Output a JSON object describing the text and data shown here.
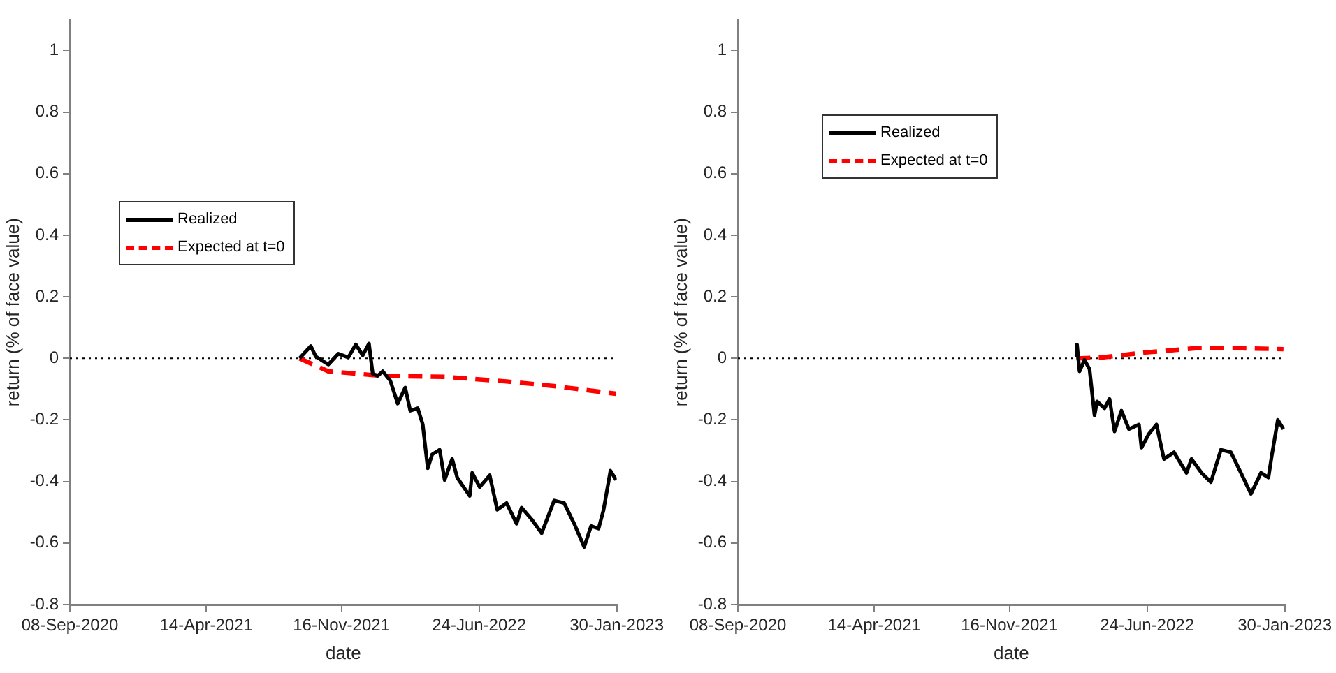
{
  "chart_data": [
    {
      "type": "line",
      "xlabel": "date",
      "ylabel": "return (% of face value)",
      "xlim": [
        "2020-09-08",
        "2023-01-30"
      ],
      "ylim": [
        -0.8,
        1.1
      ],
      "xticks": [
        {
          "value": "2020-09-08",
          "label": "08-Sep-2020"
        },
        {
          "value": "2021-04-14",
          "label": "14-Apr-2021"
        },
        {
          "value": "2021-11-16",
          "label": "16-Nov-2021"
        },
        {
          "value": "2022-06-24",
          "label": "24-Jun-2022"
        },
        {
          "value": "2023-01-30",
          "label": "30-Jan-2023"
        }
      ],
      "yticks": [
        -0.8,
        -0.6,
        -0.4,
        -0.2,
        0,
        0.2,
        0.4,
        0.6,
        0.8,
        1
      ],
      "grid": false,
      "legend": "left",
      "ref_lines": [
        {
          "axis": "y",
          "value": 0,
          "color": "#000000",
          "line_style": "dotted"
        }
      ],
      "series": [
        {
          "name": "Realized",
          "color": "#000000",
          "line_style": "solid",
          "x": [
            "2021-09-10",
            "2021-09-28",
            "2021-10-06",
            "2021-10-26",
            "2021-11-11",
            "2021-11-27",
            "2021-12-09",
            "2021-12-20",
            "2021-12-30",
            "2022-01-05",
            "2022-01-13",
            "2022-01-21",
            "2022-02-02",
            "2022-02-14",
            "2022-02-26",
            "2022-03-06",
            "2022-03-18",
            "2022-03-26",
            "2022-04-03",
            "2022-04-10",
            "2022-04-22",
            "2022-04-30",
            "2022-05-12",
            "2022-05-20",
            "2022-06-09",
            "2022-06-13",
            "2022-06-25",
            "2022-07-11",
            "2022-07-23",
            "2022-08-07",
            "2022-08-23",
            "2022-08-31",
            "2022-09-16",
            "2022-10-02",
            "2022-10-22",
            "2022-11-07",
            "2022-11-23",
            "2022-12-09",
            "2022-12-20",
            "2023-01-01",
            "2023-01-09",
            "2023-01-20",
            "2023-01-29"
          ],
          "values": [
            0,
            0.04,
            0.006,
            -0.02,
            0.015,
            0.003,
            0.045,
            0.01,
            0.048,
            -0.05,
            -0.057,
            -0.042,
            -0.072,
            -0.147,
            -0.095,
            -0.17,
            -0.162,
            -0.215,
            -0.357,
            -0.312,
            -0.297,
            -0.395,
            -0.327,
            -0.387,
            -0.447,
            -0.372,
            -0.418,
            -0.38,
            -0.492,
            -0.47,
            -0.537,
            -0.485,
            -0.523,
            -0.568,
            -0.462,
            -0.47,
            -0.537,
            -0.613,
            -0.545,
            -0.553,
            -0.492,
            -0.365,
            -0.395
          ]
        },
        {
          "name": "Expected at t=0",
          "color": "#ff0000",
          "line_style": "dashed",
          "x": [
            "2021-09-10",
            "2021-10-26",
            "2022-01-21",
            "2022-04-30",
            "2022-08-07",
            "2022-10-22",
            "2023-01-29"
          ],
          "values": [
            0,
            -0.042,
            -0.057,
            -0.06,
            -0.075,
            -0.09,
            -0.115
          ]
        }
      ]
    },
    {
      "type": "line",
      "xlabel": "date",
      "ylabel": "return (% of face value)",
      "xlim": [
        "2020-09-08",
        "2023-01-30"
      ],
      "ylim": [
        -0.8,
        1.1
      ],
      "xticks": [
        {
          "value": "2020-09-08",
          "label": "08-Sep-2020"
        },
        {
          "value": "2021-04-14",
          "label": "14-Apr-2021"
        },
        {
          "value": "2021-11-16",
          "label": "16-Nov-2021"
        },
        {
          "value": "2022-06-24",
          "label": "24-Jun-2022"
        },
        {
          "value": "2023-01-30",
          "label": "30-Jan-2023"
        }
      ],
      "yticks": [
        -0.8,
        -0.6,
        -0.4,
        -0.2,
        0,
        0.2,
        0.4,
        0.6,
        0.8,
        1
      ],
      "grid": false,
      "legend": "top left",
      "ref_lines": [
        {
          "axis": "y",
          "value": 0,
          "color": "#000000",
          "line_style": "dotted"
        }
      ],
      "series": [
        {
          "name": "Realized",
          "color": "#000000",
          "line_style": "solid",
          "x": [
            "2022-03-03",
            "2022-03-04",
            "2022-03-08",
            "2022-03-16",
            "2022-03-24",
            "2022-04-01",
            "2022-04-05",
            "2022-04-17",
            "2022-04-25",
            "2022-05-03",
            "2022-05-14",
            "2022-05-26",
            "2022-06-11",
            "2022-06-15",
            "2022-06-27",
            "2022-07-09",
            "2022-07-21",
            "2022-08-06",
            "2022-08-26",
            "2022-09-03",
            "2022-09-19",
            "2022-10-04",
            "2022-10-20",
            "2022-11-05",
            "2022-11-21",
            "2022-12-07",
            "2022-12-23",
            "2023-01-04",
            "2023-01-09",
            "2023-01-19",
            "2023-01-28"
          ],
          "values": [
            0.003,
            0.045,
            -0.042,
            -0.005,
            -0.035,
            -0.185,
            -0.14,
            -0.162,
            -0.132,
            -0.237,
            -0.17,
            -0.23,
            -0.215,
            -0.29,
            -0.245,
            -0.215,
            -0.327,
            -0.305,
            -0.372,
            -0.327,
            -0.372,
            -0.402,
            -0.297,
            -0.305,
            -0.372,
            -0.44,
            -0.372,
            -0.387,
            -0.32,
            -0.2,
            -0.23
          ]
        },
        {
          "name": "Expected at t=0",
          "color": "#ff0000",
          "line_style": "dashed",
          "x": [
            "2022-03-03",
            "2022-04-13",
            "2022-06-15",
            "2022-09-10",
            "2022-11-21",
            "2023-01-28"
          ],
          "values": [
            0,
            0.003,
            0.018,
            0.033,
            0.033,
            0.03
          ]
        }
      ]
    }
  ]
}
